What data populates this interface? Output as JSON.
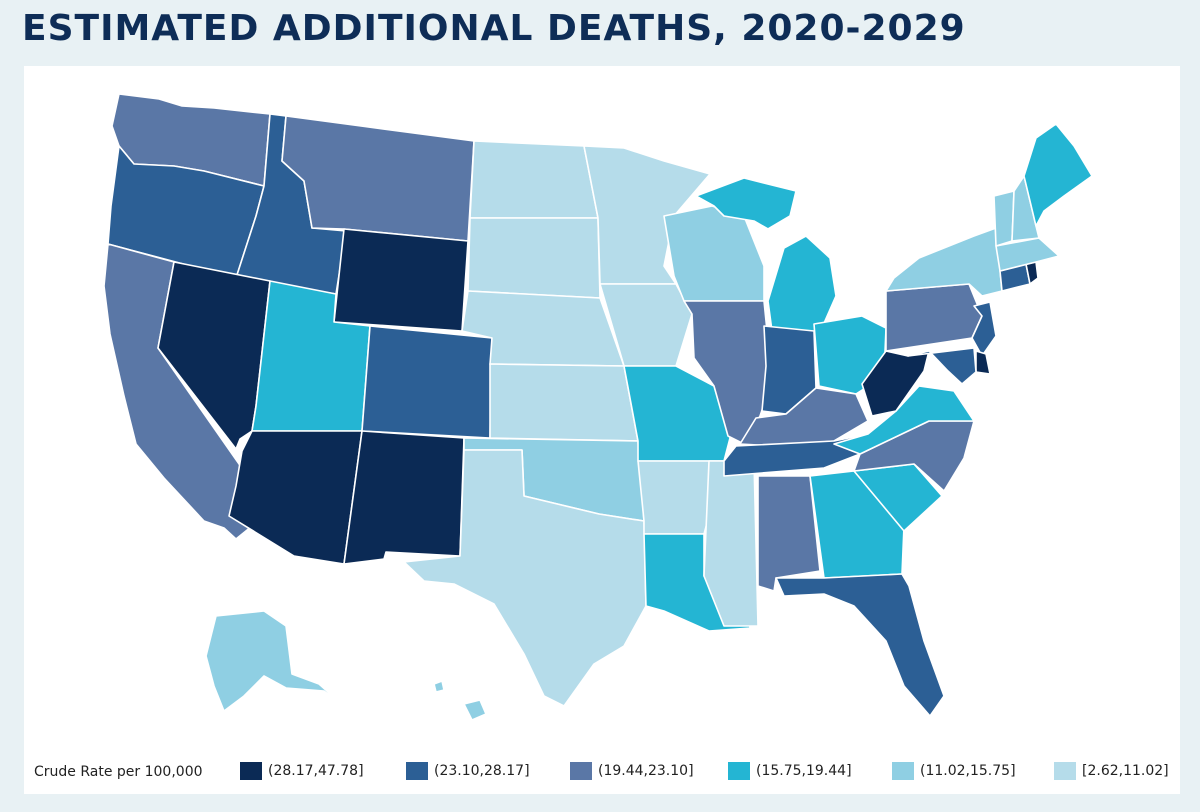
{
  "header": {
    "title": "ESTIMATED ADDITIONAL DEATHS, 2020-2029"
  },
  "legend": {
    "title": "Crude Rate per 100,000",
    "bins": [
      {
        "label": "(28.17,47.78]",
        "color": "#0b2a55"
      },
      {
        "label": "(23.10,28.17]",
        "color": "#2c5f95"
      },
      {
        "label": "(19.44,23.10]",
        "color": "#5a77a6"
      },
      {
        "label": "(15.75,19.44]",
        "color": "#24b5d3"
      },
      {
        "label": "(11.02,15.75]",
        "color": "#8fcfe3"
      },
      {
        "label": "[2.62,11.02]",
        "color": "#b5dcea"
      }
    ]
  },
  "map_data": {
    "region": "United States",
    "states": [
      {
        "id": "WA",
        "bin": 2
      },
      {
        "id": "OR",
        "bin": 1
      },
      {
        "id": "CA",
        "bin": 2
      },
      {
        "id": "ID",
        "bin": 1
      },
      {
        "id": "NV",
        "bin": 0
      },
      {
        "id": "MT",
        "bin": 2
      },
      {
        "id": "WY",
        "bin": 0
      },
      {
        "id": "UT",
        "bin": 3
      },
      {
        "id": "AZ",
        "bin": 0
      },
      {
        "id": "CO",
        "bin": 1
      },
      {
        "id": "NM",
        "bin": 0
      },
      {
        "id": "ND",
        "bin": 5
      },
      {
        "id": "SD",
        "bin": 5
      },
      {
        "id": "NE",
        "bin": 5
      },
      {
        "id": "KS",
        "bin": 5
      },
      {
        "id": "OK",
        "bin": 4
      },
      {
        "id": "TX",
        "bin": 5
      },
      {
        "id": "MN",
        "bin": 5
      },
      {
        "id": "IA",
        "bin": 5
      },
      {
        "id": "MO",
        "bin": 3
      },
      {
        "id": "AR",
        "bin": 5
      },
      {
        "id": "LA",
        "bin": 3
      },
      {
        "id": "WI",
        "bin": 4
      },
      {
        "id": "IL",
        "bin": 2
      },
      {
        "id": "MS",
        "bin": 5
      },
      {
        "id": "MI",
        "bin": 3
      },
      {
        "id": "IN",
        "bin": 1
      },
      {
        "id": "KY",
        "bin": 2
      },
      {
        "id": "TN",
        "bin": 1
      },
      {
        "id": "AL",
        "bin": 2
      },
      {
        "id": "OH",
        "bin": 3
      },
      {
        "id": "GA",
        "bin": 3
      },
      {
        "id": "FL",
        "bin": 1
      },
      {
        "id": "SC",
        "bin": 3
      },
      {
        "id": "NC",
        "bin": 2
      },
      {
        "id": "VA",
        "bin": 3
      },
      {
        "id": "WV",
        "bin": 0
      },
      {
        "id": "PA",
        "bin": 2
      },
      {
        "id": "NY",
        "bin": 4
      },
      {
        "id": "VT",
        "bin": 4
      },
      {
        "id": "NH",
        "bin": 4
      },
      {
        "id": "ME",
        "bin": 3
      },
      {
        "id": "MA",
        "bin": 4
      },
      {
        "id": "RI",
        "bin": 0
      },
      {
        "id": "CT",
        "bin": 1
      },
      {
        "id": "NJ",
        "bin": 1
      },
      {
        "id": "DE",
        "bin": 0
      },
      {
        "id": "MD",
        "bin": 1
      },
      {
        "id": "AK",
        "bin": 4
      },
      {
        "id": "HI",
        "bin": 4
      }
    ]
  }
}
